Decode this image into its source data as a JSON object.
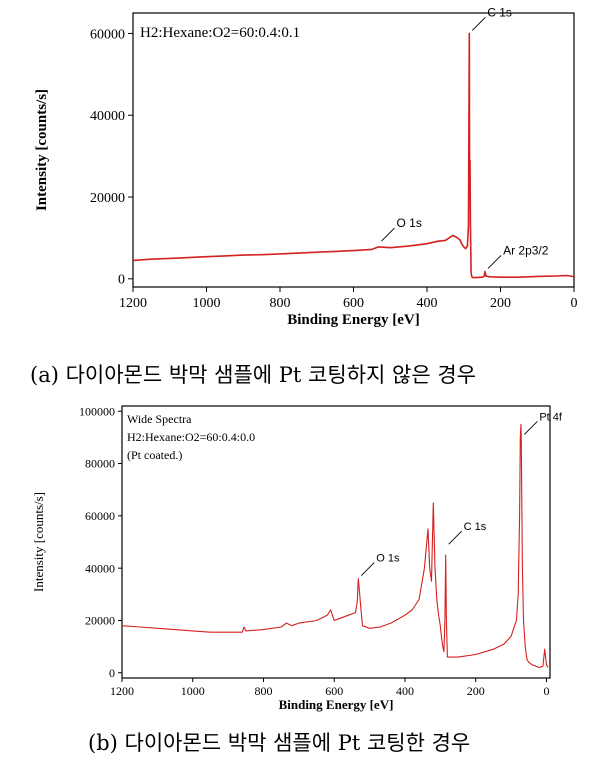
{
  "colors": {
    "series": "#d42020",
    "axis": "#000000",
    "background": "#ffffff"
  },
  "chart_data": [
    {
      "type": "line",
      "annotation": "H2:Hexane:O2=60:0.4:0.1",
      "xlabel": "Binding Energy [eV]",
      "ylabel": "Intensity [counts/s]",
      "xlim": [
        1200,
        0
      ],
      "ylim": [
        -2000,
        65000
      ],
      "x_ticks": [
        1200,
        1000,
        800,
        600,
        400,
        200,
        0
      ],
      "x_tick_labels": [
        "1200",
        "1000",
        "800",
        "600",
        "400",
        "200",
        "0"
      ],
      "y_ticks": [
        0,
        20000,
        40000,
        60000
      ],
      "y_tick_labels": [
        "0",
        "20000",
        "40000",
        "60000"
      ],
      "grid": false,
      "peak_labels": [
        {
          "text": "C 1s",
          "x": 285,
          "y": 60000
        },
        {
          "text": "O 1s",
          "x": 532,
          "y": 8500
        },
        {
          "text": "Ar 2p3/2",
          "x": 242,
          "y": 1800
        }
      ],
      "series": [
        {
          "x": [
            1200,
            1150,
            1100,
            1050,
            1000,
            950,
            900,
            850,
            800,
            750,
            700,
            650,
            600,
            550,
            532,
            500,
            450,
            400,
            370,
            350,
            330,
            320,
            310,
            305,
            300,
            295,
            290,
            287,
            285,
            284,
            283,
            282,
            280,
            278,
            275,
            270,
            260,
            250,
            245,
            242,
            240,
            230,
            200,
            150,
            100,
            50,
            20,
            10,
            0
          ],
          "y": [
            4500,
            4800,
            5000,
            5200,
            5400,
            5600,
            5800,
            5900,
            6100,
            6300,
            6500,
            6700,
            6900,
            7200,
            7800,
            7600,
            8000,
            8600,
            9200,
            9400,
            10600,
            10200,
            9500,
            8500,
            7800,
            7400,
            8000,
            13000,
            60000,
            26000,
            29000,
            14000,
            1500,
            500,
            300,
            300,
            350,
            400,
            600,
            1800,
            700,
            500,
            400,
            400,
            600,
            700,
            800,
            700,
            500
          ]
        }
      ]
    },
    {
      "type": "line",
      "annotation_lines": [
        "Wide Spectra",
        "H2:Hexane:O2=60:0.4:0.0",
        "(Pt coated.)"
      ],
      "xlabel": "Binding Energy [eV]",
      "ylabel": "Intensity [counts/s]",
      "xlim": [
        1200,
        -10
      ],
      "ylim": [
        -2000,
        102000
      ],
      "x_ticks": [
        1200,
        1000,
        800,
        600,
        400,
        200,
        0
      ],
      "x_tick_labels": [
        "1200",
        "1000",
        "800",
        "600",
        "400",
        "200",
        "0"
      ],
      "y_ticks": [
        0,
        20000,
        40000,
        60000,
        80000,
        100000
      ],
      "y_tick_labels": [
        "0",
        "20000",
        "40000",
        "60000",
        "80000",
        "100000"
      ],
      "grid": false,
      "peak_labels": [
        {
          "text": "Pt 4f",
          "x": 71,
          "y": 90000
        },
        {
          "text": "C 1s",
          "x": 285,
          "y": 48000
        },
        {
          "text": "O 1s",
          "x": 532,
          "y": 36000
        }
      ],
      "series": [
        {
          "x": [
            1200,
            1150,
            1100,
            1050,
            1000,
            950,
            900,
            860,
            855,
            850,
            800,
            750,
            735,
            720,
            700,
            650,
            620,
            610,
            600,
            580,
            560,
            540,
            535,
            532,
            528,
            525,
            520,
            500,
            470,
            440,
            400,
            380,
            360,
            345,
            335,
            330,
            325,
            320,
            315,
            310,
            305,
            300,
            298,
            295,
            293,
            290,
            287,
            285,
            283,
            280,
            250,
            200,
            150,
            120,
            100,
            90,
            85,
            80,
            76,
            74,
            72,
            71,
            70,
            68,
            65,
            60,
            55,
            50,
            40,
            20,
            10,
            5,
            0,
            -5
          ],
          "y": [
            18000,
            17500,
            17000,
            16500,
            16000,
            15500,
            15500,
            15500,
            17500,
            16000,
            16500,
            17500,
            19000,
            18000,
            19000,
            20000,
            22000,
            24000,
            20000,
            21000,
            22000,
            23000,
            27000,
            36000,
            30000,
            25000,
            18000,
            17000,
            17500,
            19000,
            22000,
            24000,
            28000,
            40000,
            55000,
            40000,
            35000,
            65000,
            40000,
            28000,
            22000,
            18000,
            15000,
            12000,
            10000,
            8000,
            20000,
            45000,
            20000,
            6000,
            6000,
            7000,
            9000,
            11000,
            14000,
            18000,
            20000,
            30000,
            60000,
            90000,
            95000,
            88000,
            70000,
            40000,
            20000,
            10000,
            5000,
            4000,
            3000,
            2000,
            2500,
            9000,
            3000,
            2000
          ]
        }
      ]
    }
  ],
  "captions": [
    "(a) 다이아몬드 박막 샘플에 Pt 코팅하지 않은 경우",
    "(b) 다이아몬드 박막 샘플에 Pt 코팅한 경우"
  ]
}
